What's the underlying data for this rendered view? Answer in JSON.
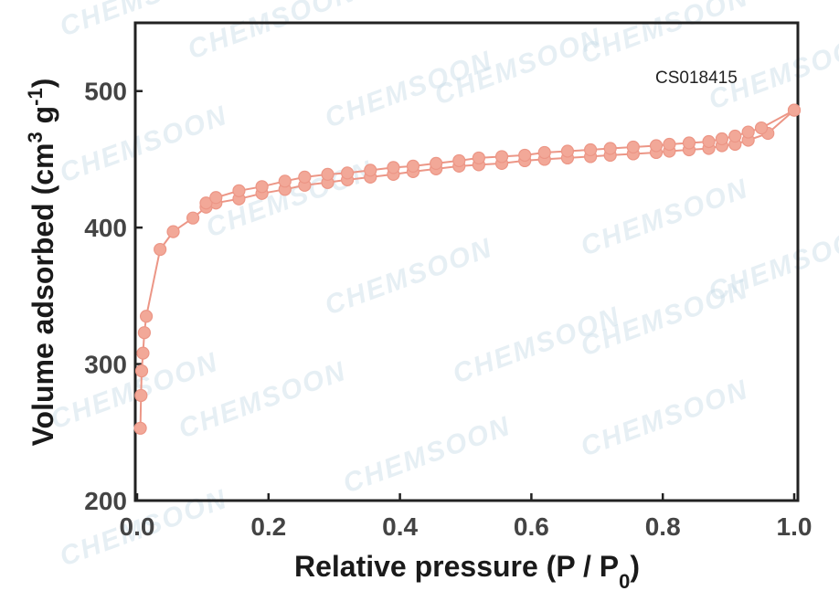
{
  "chart_data": {
    "type": "line",
    "title": "",
    "xlabel": "Relative pressure (P / P0)",
    "ylabel": "Volume adsorbed (cm3 g-1)",
    "xlim": [
      0,
      1.0
    ],
    "ylim": [
      200,
      550
    ],
    "xticks": [
      "0.0",
      "0.2",
      "0.4",
      "0.6",
      "0.8",
      "1.0"
    ],
    "yticks": [
      "200",
      "300",
      "400",
      "500"
    ],
    "grid": false,
    "legend": "none",
    "annotation": "CS018415",
    "watermark": "CHEMSOON",
    "marker_color": "#f2a898",
    "line_color": "#ec9686",
    "series": [
      {
        "x": [
          0.005,
          0.006,
          0.007,
          0.009,
          0.011,
          0.014,
          0.035,
          0.055,
          0.085,
          0.105,
          0.12,
          0.155,
          0.19,
          0.225,
          0.255,
          0.29,
          0.32,
          0.355,
          0.39,
          0.42,
          0.455,
          0.49,
          0.52,
          0.555,
          0.59,
          0.62,
          0.655,
          0.69,
          0.72,
          0.755,
          0.79,
          0.81,
          0.84,
          0.87,
          0.89,
          0.91,
          0.93,
          0.96,
          1.0
        ],
        "values": [
          253,
          277,
          295,
          308,
          323,
          335,
          384,
          397,
          407,
          415,
          418,
          421,
          425,
          428,
          431,
          433,
          435,
          437,
          439,
          441,
          443,
          445,
          446,
          447,
          449,
          450,
          451,
          452,
          453,
          454,
          455,
          456,
          457,
          458,
          460,
          461,
          464,
          469,
          486
        ]
      },
      {
        "x": [
          0.105,
          0.12,
          0.155,
          0.19,
          0.225,
          0.255,
          0.29,
          0.32,
          0.355,
          0.39,
          0.42,
          0.455,
          0.49,
          0.52,
          0.555,
          0.59,
          0.62,
          0.655,
          0.69,
          0.72,
          0.755,
          0.79,
          0.81,
          0.84,
          0.87,
          0.89,
          0.91,
          0.93,
          0.95,
          1.0
        ],
        "values": [
          418,
          422,
          427,
          430,
          434,
          437,
          439,
          440,
          442,
          444,
          445,
          447,
          449,
          451,
          452,
          453,
          455,
          456,
          457,
          458,
          459,
          460,
          461,
          462,
          463,
          465,
          467,
          470,
          473,
          486
        ]
      }
    ]
  }
}
